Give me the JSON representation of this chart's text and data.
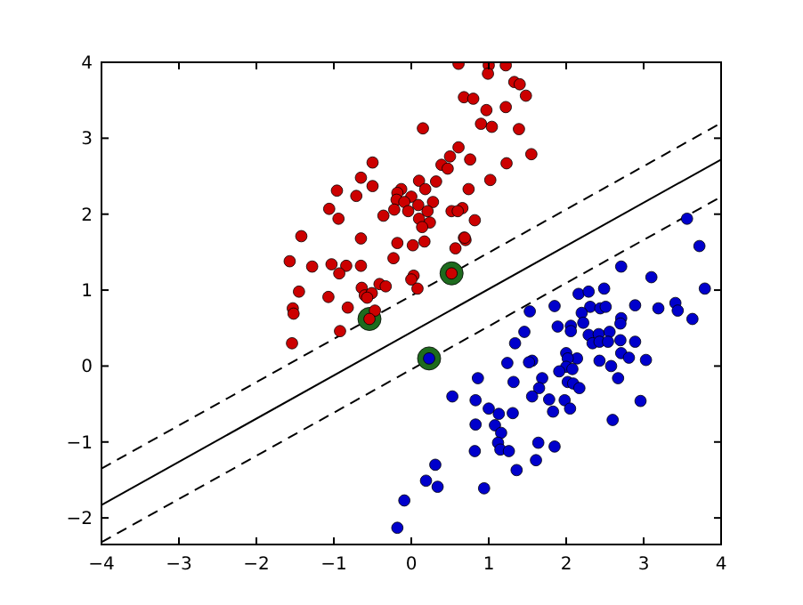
{
  "chart_data": {
    "type": "scatter",
    "xlim": [
      -4,
      4
    ],
    "ylim": [
      -2.35,
      4
    ],
    "xticks": [
      -4,
      -3,
      -2,
      -1,
      0,
      1,
      2,
      3,
      4
    ],
    "yticks": [
      -2,
      -1,
      0,
      1,
      2,
      3,
      4
    ],
    "grid": false,
    "marker": "circle",
    "series": [
      {
        "type": "line",
        "color": "#000000",
        "line_style": "dashed",
        "marker": "none",
        "x": [
          -4,
          4
        ],
        "values": [
          -1.35,
          3.2
        ]
      },
      {
        "type": "line",
        "color": "#000000",
        "line_style": "solid",
        "marker": "none",
        "x": [
          -4,
          4
        ],
        "values": [
          -1.83,
          2.72
        ]
      },
      {
        "type": "line",
        "color": "#000000",
        "line_style": "dashed",
        "marker": "none",
        "x": [
          -4,
          4
        ],
        "values": [
          -2.32,
          2.23
        ]
      },
      {
        "color": "#1e6b1e",
        "x": [
          0.52,
          -0.54,
          0.23
        ],
        "values": [
          1.22,
          0.62,
          0.1
        ]
      },
      {
        "color": "#cc0000",
        "x": [
          0.61,
          1.0,
          1.22,
          0.99,
          1.33,
          1.4,
          0.68,
          0.8,
          1.48,
          1.22,
          0.97,
          0.9,
          1.04,
          1.39,
          0.15,
          0.61,
          0.5,
          0.76,
          0.39,
          0.47,
          1.23,
          1.55,
          -0.5,
          -0.65,
          -0.5,
          -0.96,
          -0.71,
          -1.06,
          -0.94,
          1.02,
          0.1,
          0.32,
          -0.13,
          0.18,
          -0.18,
          0.74,
          0.0,
          -0.19,
          -0.09,
          0.09,
          0.28,
          -0.22,
          -0.36,
          -0.04,
          0.21,
          0.52,
          0.66,
          0.6,
          0.1,
          0.24,
          0.14,
          0.82,
          -1.42,
          -0.65,
          -0.18,
          0.02,
          0.17,
          0.68,
          0.7,
          0.57,
          -0.23,
          -1.57,
          -1.28,
          -1.03,
          -0.84,
          -0.65,
          -0.93,
          0.03,
          0.0,
          -1.45,
          -1.07,
          -0.64,
          -0.41,
          -0.33,
          -0.6,
          -0.51,
          0.08,
          -0.57,
          -0.82,
          -0.47,
          -1.53,
          -1.52,
          -0.92,
          -1.54,
          0.69,
          0.52,
          -0.54
        ],
        "values": [
          3.98,
          3.96,
          3.96,
          3.85,
          3.74,
          3.71,
          3.54,
          3.52,
          3.56,
          3.41,
          3.37,
          3.19,
          3.15,
          3.12,
          3.13,
          2.88,
          2.76,
          2.72,
          2.65,
          2.6,
          2.67,
          2.79,
          2.68,
          2.48,
          2.37,
          2.31,
          2.24,
          2.07,
          1.94,
          2.45,
          2.44,
          2.43,
          2.33,
          2.33,
          2.28,
          2.33,
          2.23,
          2.19,
          2.16,
          2.12,
          2.16,
          2.06,
          1.98,
          2.04,
          2.04,
          2.04,
          2.08,
          2.04,
          1.94,
          1.89,
          1.83,
          1.92,
          1.71,
          1.68,
          1.62,
          1.59,
          1.64,
          1.69,
          1.66,
          1.55,
          1.42,
          1.38,
          1.31,
          1.34,
          1.32,
          1.32,
          1.22,
          1.19,
          1.14,
          0.98,
          0.91,
          1.03,
          1.08,
          1.05,
          0.93,
          0.96,
          1.02,
          0.9,
          0.77,
          0.73,
          0.76,
          0.69,
          0.46,
          0.3,
          1.69,
          1.22,
          0.62
        ]
      },
      {
        "color": "#0000cc",
        "x": [
          3.56,
          3.72,
          3.79,
          2.71,
          3.1,
          2.16,
          2.29,
          2.49,
          2.89,
          3.19,
          3.41,
          3.44,
          3.63,
          1.85,
          1.53,
          2.31,
          2.44,
          2.51,
          2.2,
          2.71,
          2.7,
          2.22,
          1.89,
          2.06,
          2.06,
          1.46,
          2.29,
          2.42,
          2.56,
          2.34,
          2.43,
          2.54,
          2.7,
          2.89,
          1.34,
          2.0,
          2.14,
          2.02,
          1.56,
          1.52,
          1.24,
          2.43,
          2.71,
          2.81,
          3.03,
          2.58,
          2.0,
          2.08,
          1.69,
          1.91,
          2.02,
          2.09,
          2.17,
          2.67,
          0.86,
          1.32,
          1.65,
          1.56,
          0.53,
          0.83,
          1.78,
          1.98,
          1.0,
          1.13,
          1.31,
          1.83,
          2.05,
          2.96,
          2.6,
          0.83,
          1.08,
          1.16,
          1.12,
          1.15,
          1.26,
          0.82,
          1.64,
          1.85,
          1.61,
          1.36,
          0.31,
          0.19,
          0.34,
          0.94,
          -0.09,
          -0.18,
          0.23
        ],
        "values": [
          1.94,
          1.58,
          1.02,
          1.31,
          1.17,
          0.95,
          0.98,
          1.02,
          0.8,
          0.76,
          0.83,
          0.73,
          0.62,
          0.79,
          0.72,
          0.78,
          0.76,
          0.78,
          0.7,
          0.63,
          0.56,
          0.57,
          0.52,
          0.53,
          0.46,
          0.45,
          0.41,
          0.42,
          0.45,
          0.3,
          0.32,
          0.32,
          0.34,
          0.32,
          0.3,
          0.17,
          0.1,
          0.1,
          0.07,
          0.05,
          0.04,
          0.07,
          0.17,
          0.11,
          0.08,
          0.0,
          -0.01,
          -0.04,
          -0.16,
          -0.07,
          -0.21,
          -0.23,
          -0.29,
          -0.16,
          -0.16,
          -0.21,
          -0.29,
          -0.4,
          -0.4,
          -0.45,
          -0.44,
          -0.45,
          -0.56,
          -0.63,
          -0.62,
          -0.6,
          -0.56,
          -0.46,
          -0.71,
          -0.77,
          -0.78,
          -0.88,
          -1.01,
          -1.1,
          -1.12,
          -1.12,
          -1.01,
          -1.06,
          -1.24,
          -1.37,
          -1.3,
          -1.51,
          -1.59,
          -1.61,
          -1.77,
          -2.13,
          0.1
        ]
      }
    ]
  }
}
